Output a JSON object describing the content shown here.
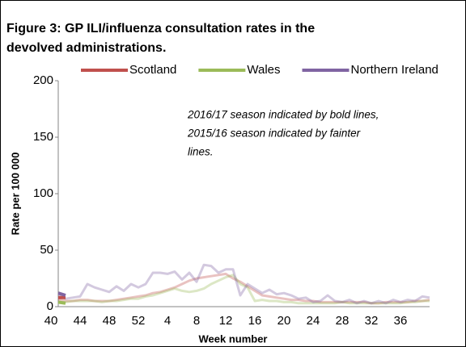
{
  "chart_data": {
    "type": "line",
    "title": [
      "Figure 3: GP ILI/influenza consultation rates  in the",
      "devolved administrations."
    ],
    "annotation": [
      "2016/17 season indicated by bold lines,",
      "2015/16 season indicated by fainter",
      "lines."
    ],
    "x_label": "Week number",
    "y_label": "Rate per 100 000",
    "categories": [
      "40",
      null,
      null,
      null,
      "44",
      null,
      null,
      null,
      "48",
      null,
      null,
      null,
      "52",
      null,
      null,
      null,
      "4",
      null,
      null,
      null,
      "8",
      null,
      null,
      null,
      "12",
      null,
      null,
      null,
      "16",
      null,
      null,
      null,
      "20",
      null,
      null,
      null,
      "24",
      null,
      null,
      null,
      "28",
      null,
      null,
      null,
      "32",
      null,
      null,
      null,
      "36",
      null,
      null,
      null
    ],
    "ylim": [
      0,
      200
    ],
    "yticks": [
      0,
      50,
      100,
      150,
      200
    ],
    "series": [
      {
        "color": "#c0504d",
        "faint": true,
        "values": [
          6,
          5,
          5,
          6,
          6,
          5,
          5,
          5,
          6,
          7,
          8,
          9,
          10,
          12,
          13,
          15,
          17,
          20,
          23,
          25,
          26,
          27,
          28,
          29,
          25,
          22,
          18,
          14,
          10,
          9,
          8,
          7,
          6,
          6,
          5,
          5,
          4,
          4,
          4,
          4,
          4,
          4,
          4,
          3,
          3,
          4,
          4,
          4,
          4,
          5,
          5,
          6
        ]
      },
      {
        "color": "#9bbb59",
        "faint": true,
        "values": [
          4,
          4,
          5,
          5,
          5,
          5,
          4,
          5,
          5,
          6,
          7,
          7,
          9,
          10,
          12,
          14,
          16,
          14,
          13,
          14,
          16,
          20,
          23,
          26,
          28,
          20,
          17,
          5,
          6,
          5,
          5,
          4,
          4,
          3,
          3,
          3,
          3,
          3,
          3,
          4,
          3,
          3,
          3,
          3,
          3,
          3,
          3,
          3,
          4,
          4,
          5,
          5
        ]
      },
      {
        "color": "#8064a2",
        "faint": true,
        "values": [
          10,
          7,
          8,
          9,
          20,
          17,
          15,
          13,
          18,
          14,
          20,
          17,
          20,
          30,
          30,
          29,
          31,
          24,
          30,
          22,
          37,
          36,
          30,
          33,
          33,
          10,
          20,
          16,
          12,
          15,
          11,
          12,
          10,
          7,
          8,
          4,
          5,
          10,
          5,
          4,
          6,
          3,
          5,
          3,
          5,
          3,
          6,
          4,
          6,
          5,
          9,
          8
        ]
      },
      {
        "name": "Scotland",
        "color": "#c0504d",
        "faint": false,
        "values": [
          8,
          8,
          null,
          null,
          null,
          null,
          null,
          null,
          null,
          null,
          null,
          null,
          null,
          null,
          null,
          null,
          null,
          null,
          null,
          null,
          null,
          null,
          null,
          null,
          null,
          null,
          null,
          null,
          null,
          null,
          null,
          null,
          null,
          null,
          null,
          null,
          null,
          null,
          null,
          null,
          null,
          null,
          null,
          null,
          null,
          null,
          null,
          null,
          null,
          null,
          null,
          null
        ]
      },
      {
        "name": "Wales",
        "color": "#9bbb59",
        "faint": false,
        "values": [
          4,
          3,
          null,
          null,
          null,
          null,
          null,
          null,
          null,
          null,
          null,
          null,
          null,
          null,
          null,
          null,
          null,
          null,
          null,
          null,
          null,
          null,
          null,
          null,
          null,
          null,
          null,
          null,
          null,
          null,
          null,
          null,
          null,
          null,
          null,
          null,
          null,
          null,
          null,
          null,
          null,
          null,
          null,
          null,
          null,
          null,
          null,
          null,
          null,
          null,
          null,
          null
        ]
      },
      {
        "name": "Northern Ireland",
        "color": "#8064a2",
        "faint": false,
        "values": [
          12,
          10,
          null,
          null,
          null,
          null,
          null,
          null,
          null,
          null,
          null,
          null,
          null,
          null,
          null,
          null,
          null,
          null,
          null,
          null,
          null,
          null,
          null,
          null,
          null,
          null,
          null,
          null,
          null,
          null,
          null,
          null,
          null,
          null,
          null,
          null,
          null,
          null,
          null,
          null,
          null,
          null,
          null,
          null,
          null,
          null,
          null,
          null,
          null,
          null,
          null,
          null
        ]
      }
    ]
  }
}
